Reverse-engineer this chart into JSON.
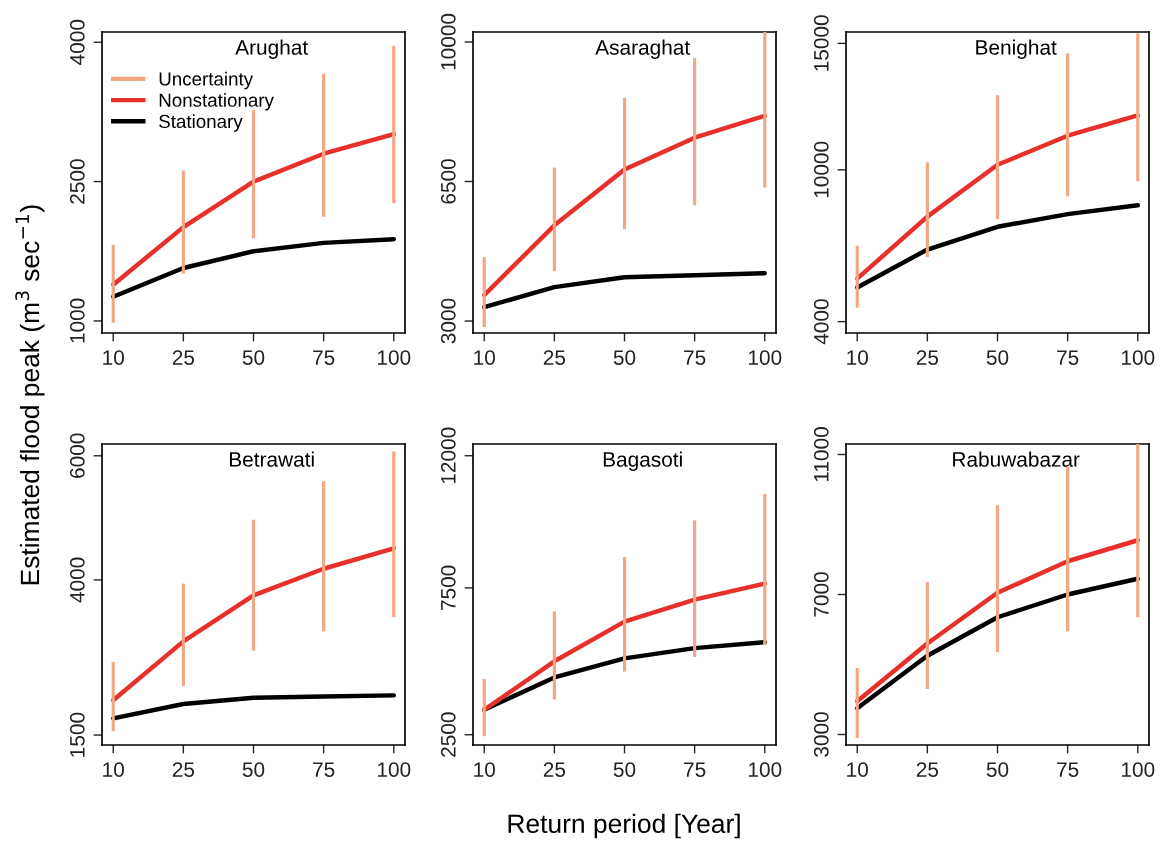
{
  "chart_data": [
    {
      "type": "line",
      "title": "Arughat",
      "ylabel": "Estimated flood peak (m$^{3}$ sec$^{−1}$)",
      "categories": [
        "10",
        "25",
        "50",
        "75",
        "100"
      ],
      "ylim": [
        870,
        4110
      ],
      "yticks": [
        1000,
        2500,
        4000
      ],
      "legend": "top left",
      "series": [
        {
          "name": "Uncertainty",
          "type": "bar",
          "color": "#f4a582",
          "base": [
            980,
            1510,
            1890,
            2120,
            2270
          ],
          "values": [
            840,
            1110,
            1380,
            1540,
            1690
          ]
        },
        {
          "name": "Nonstationary",
          "color": "#e8302a",
          "values": [
            1390,
            2010,
            2500,
            2800,
            3010
          ]
        },
        {
          "name": "Stationary",
          "color": "#000000",
          "values": [
            1260,
            1570,
            1750,
            1840,
            1880
          ]
        }
      ]
    },
    {
      "type": "line",
      "title": "Asaraghat",
      "categories": [
        "10",
        "25",
        "50",
        "75",
        "100"
      ],
      "ylim": [
        2700,
        10250
      ],
      "yticks": [
        3000,
        6500,
        10000
      ],
      "series": [
        {
          "type": "bar",
          "color": "#f4a582",
          "base": [
            2850,
            4250,
            5300,
            5900,
            6350
          ],
          "values": [
            1750,
            2600,
            3300,
            3700,
            3900
          ]
        },
        {
          "color": "#e8302a",
          "values": [
            3650,
            5400,
            6800,
            7600,
            8150
          ]
        },
        {
          "color": "#000000",
          "values": [
            3350,
            3850,
            4100,
            4150,
            4200
          ]
        }
      ]
    },
    {
      "type": "line",
      "title": "Benighat",
      "categories": [
        "10",
        "25",
        "50",
        "75",
        "100"
      ],
      "ylim": [
        3550,
        15450
      ],
      "yticks": [
        4000,
        10000,
        15000
      ],
      "series": [
        {
          "type": "bar",
          "color": "#f4a582",
          "base": [
            4550,
            6550,
            8050,
            8950,
            9550
          ],
          "values": [
            2450,
            3750,
            4900,
            5650,
            5850
          ]
        },
        {
          "color": "#e8302a",
          "values": [
            5700,
            8150,
            10200,
            11350,
            12150
          ]
        },
        {
          "color": "#000000",
          "values": [
            5350,
            6850,
            7750,
            8250,
            8600
          ]
        }
      ]
    },
    {
      "type": "line",
      "title": "Betrawati",
      "categories": [
        "10",
        "25",
        "50",
        "75",
        "100"
      ],
      "ylim": [
        1340,
        6190
      ],
      "yticks": [
        1500,
        4000,
        6000
      ],
      "series": [
        {
          "type": "bar",
          "color": "#f4a582",
          "base": [
            1560,
            2290,
            2860,
            3170,
            3400
          ],
          "values": [
            1120,
            1650,
            2110,
            2420,
            2670
          ]
        },
        {
          "color": "#e8302a",
          "values": [
            2060,
            3010,
            3750,
            4180,
            4510
          ]
        },
        {
          "color": "#000000",
          "values": [
            1770,
            2000,
            2100,
            2120,
            2140
          ]
        }
      ]
    },
    {
      "type": "line",
      "title": "Bagasoti",
      "xlabel": "Return period [Year]",
      "categories": [
        "10",
        "25",
        "50",
        "75",
        "100"
      ],
      "ylim": [
        2150,
        12400
      ],
      "yticks": [
        2500,
        7500,
        12000
      ],
      "series": [
        {
          "type": "bar",
          "color": "#f4a582",
          "base": [
            2450,
            3700,
            4650,
            5150,
            5550
          ],
          "values": [
            1950,
            3000,
            3900,
            4650,
            5150
          ]
        },
        {
          "color": "#e8302a",
          "values": [
            3350,
            5000,
            6350,
            7100,
            7650
          ]
        },
        {
          "color": "#000000",
          "values": [
            3350,
            4450,
            5100,
            5450,
            5650
          ]
        }
      ]
    },
    {
      "type": "line",
      "title": "Rabuwabazar",
      "categories": [
        "10",
        "25",
        "50",
        "75",
        "100"
      ],
      "ylim": [
        2700,
        11300
      ],
      "yticks": [
        3000,
        7000,
        11000
      ],
      "series": [
        {
          "type": "bar",
          "color": "#f4a582",
          "base": [
            2900,
            4300,
            5350,
            5950,
            6350
          ],
          "values": [
            2000,
            3050,
            4200,
            4700,
            4950
          ]
        },
        {
          "color": "#e8302a",
          "values": [
            3950,
            5600,
            7050,
            7950,
            8550
          ]
        },
        {
          "color": "#000000",
          "values": [
            3750,
            5250,
            6350,
            7000,
            7450
          ]
        }
      ]
    }
  ]
}
